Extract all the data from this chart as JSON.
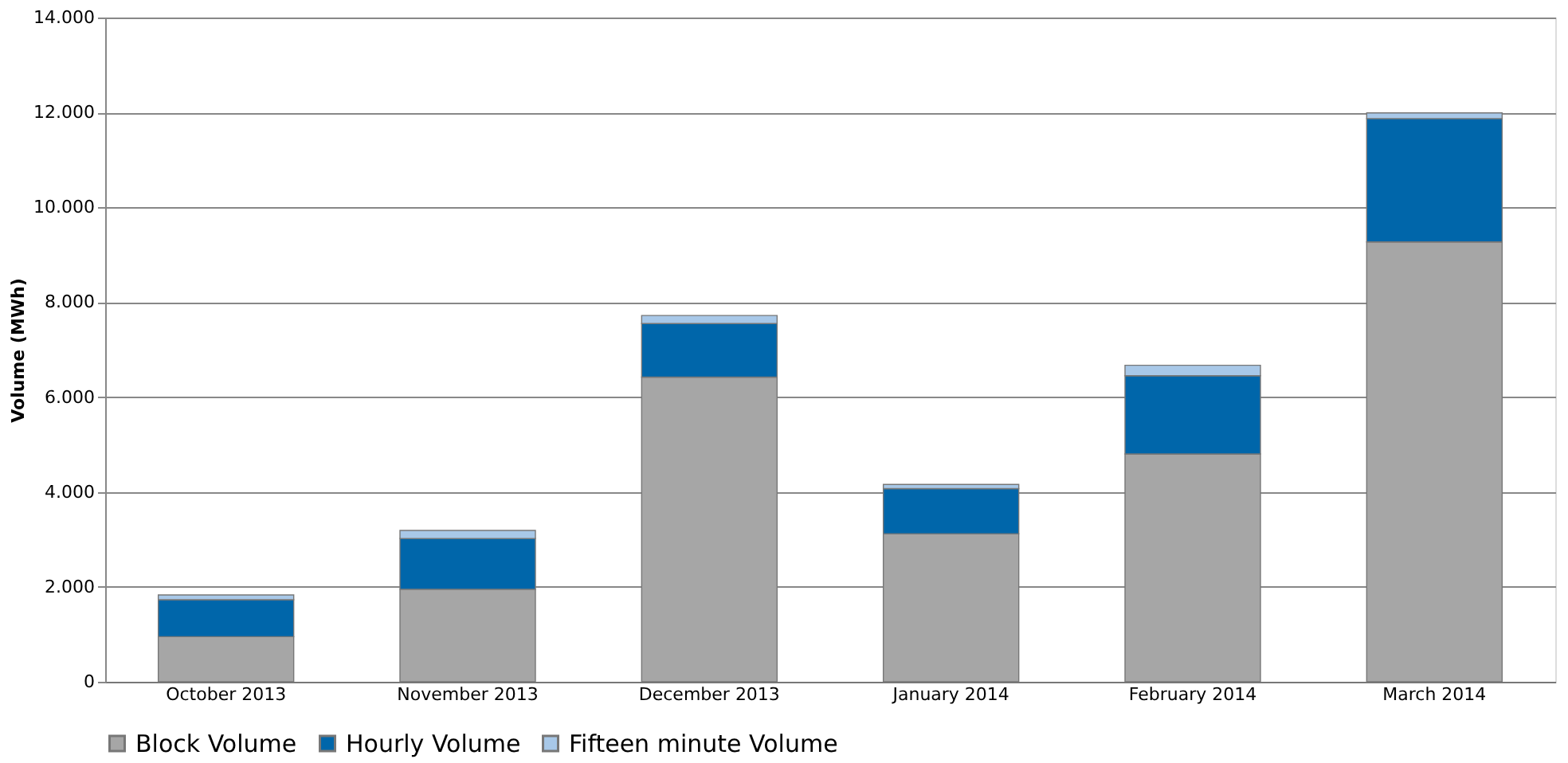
{
  "chart_data": {
    "type": "bar",
    "stacked": true,
    "ylabel": "Volume (MWh)",
    "categories": [
      "October 2013",
      "November 2013",
      "December 2013",
      "January 2014",
      "February 2014",
      "March 2014"
    ],
    "series": [
      {
        "name": "Block Volume",
        "color": "#a6a6a6",
        "values": [
          950,
          1950,
          6420,
          3120,
          4800,
          9270
        ]
      },
      {
        "name": "Hourly Volume",
        "color": "#0066aa",
        "values": [
          780,
          1070,
          1130,
          950,
          1650,
          2600
        ]
      },
      {
        "name": "Fifteen minute Volume",
        "color": "#a8c8e8",
        "values": [
          100,
          170,
          170,
          90,
          220,
          120
        ]
      }
    ],
    "ylim": [
      0,
      14000
    ],
    "yticks": [
      0,
      {
        "value": 2000,
        "label": "2.000"
      },
      {
        "value": 4000,
        "label": "4.000"
      },
      {
        "value": 6000,
        "label": "6.000"
      },
      {
        "value": 8000,
        "label": "8.000"
      },
      {
        "value": 10000,
        "label": "10.000"
      },
      {
        "value": 12000,
        "label": "12.000"
      },
      {
        "value": 14000,
        "label": "14.000"
      }
    ],
    "grid": "y",
    "legend": "bottom"
  }
}
